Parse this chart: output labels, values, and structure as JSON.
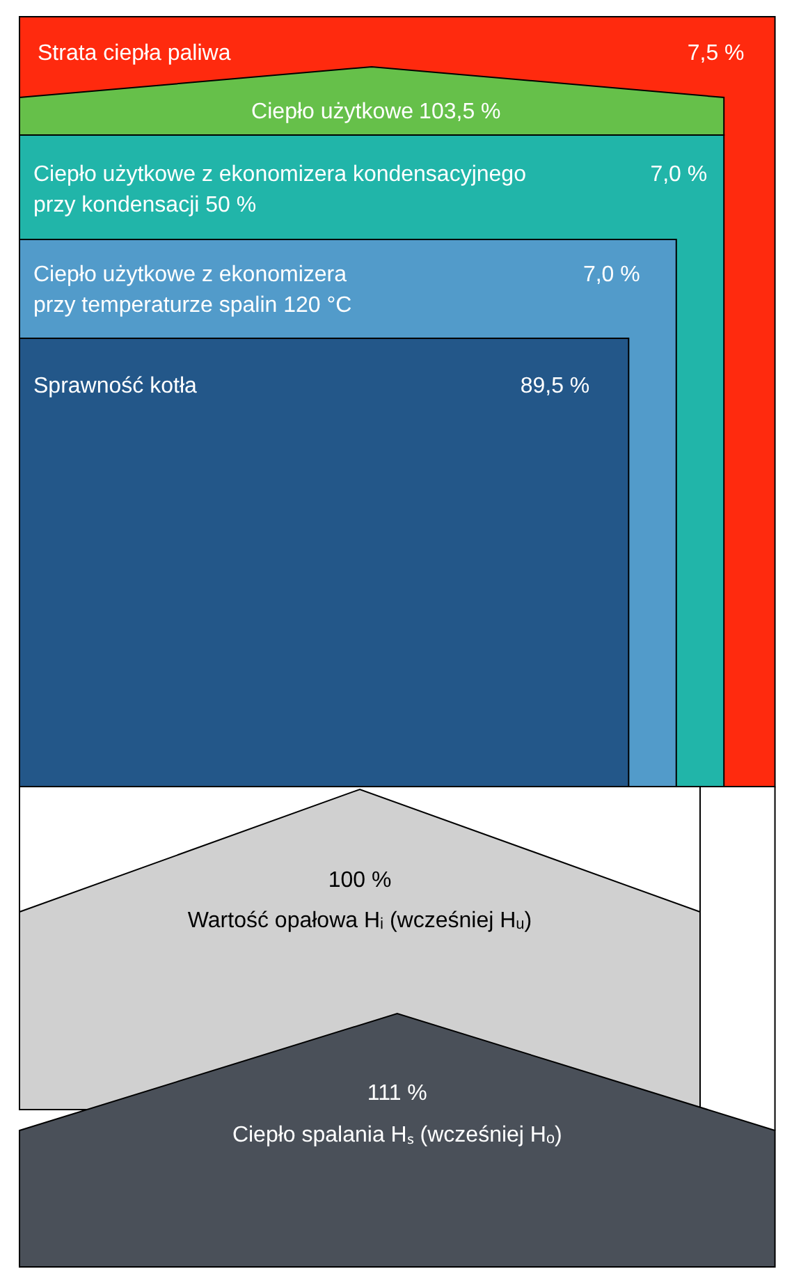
{
  "chart_data": {
    "type": "other",
    "categories": [
      "Strata ciepła paliwa",
      "Ciepło użytkowe",
      "Ciepło użytkowe z ekonomizera kondensacyjnego\nprzy kondensacji  50 %",
      "Ciepło użytkowe z ekonomizera\nprzy temperaturze spalin 120 °C",
      "Sprawność kotła",
      "Wartość opałowa Hᵢ (wcześniej Hᵤ)",
      "Ciepło spalania Hₛ (wcześniej Hₒ)"
    ],
    "values": [
      7.5,
      103.5,
      7.0,
      7.0,
      89.5,
      100,
      111
    ],
    "value_labels": [
      "7,5 %",
      "103,5 %",
      "7,0 %",
      "7,0 %",
      "89,5 %",
      "100 %",
      "111 %"
    ],
    "colors": [
      "#ff2a0e",
      "#66c04a",
      "#21b5a9",
      "#529bca",
      "#235789",
      "#d0d0d0",
      "#4a5059"
    ]
  }
}
